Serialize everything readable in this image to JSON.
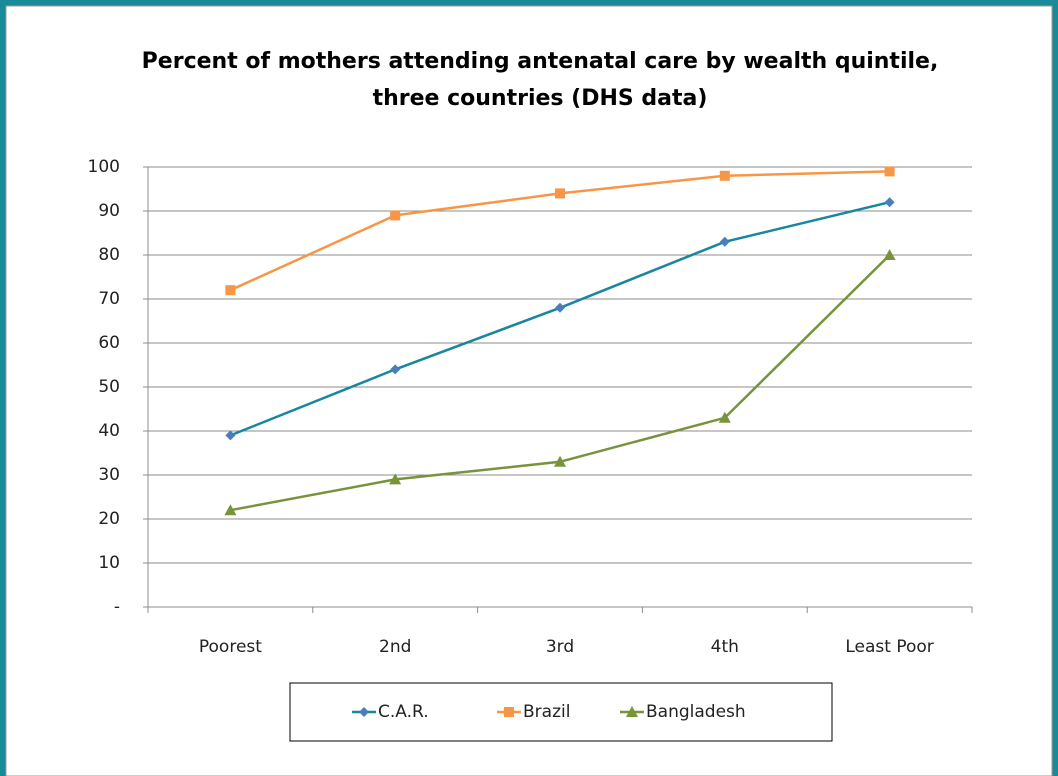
{
  "chart_data": {
    "type": "line",
    "title": [
      "Percent of mothers attending antenatal care by wealth quintile,",
      "three countries (DHS data)"
    ],
    "categories": [
      "Poorest",
      "2nd",
      "3rd",
      "4th",
      "Least Poor"
    ],
    "series": [
      {
        "name": "C.A.R.",
        "color": "#17869e",
        "marker_color": "#4a7ebb",
        "marker": "diamond",
        "values": [
          39,
          54,
          68,
          83,
          92
        ]
      },
      {
        "name": "Brazil",
        "color": "#f79646",
        "marker_color": "#f79646",
        "marker": "square",
        "values": [
          72,
          89,
          94,
          98,
          99
        ]
      },
      {
        "name": "Bangladesh",
        "color": "#77933c",
        "marker_color": "#77933c",
        "marker": "triangle",
        "values": [
          22,
          29,
          33,
          43,
          80
        ]
      }
    ],
    "ylim": [
      0,
      100
    ],
    "yticks": [
      {
        "value": 0,
        "label": "-"
      },
      10,
      20,
      30,
      40,
      50,
      60,
      70,
      80,
      90,
      100
    ],
    "grid": true,
    "legend": "bottom"
  }
}
